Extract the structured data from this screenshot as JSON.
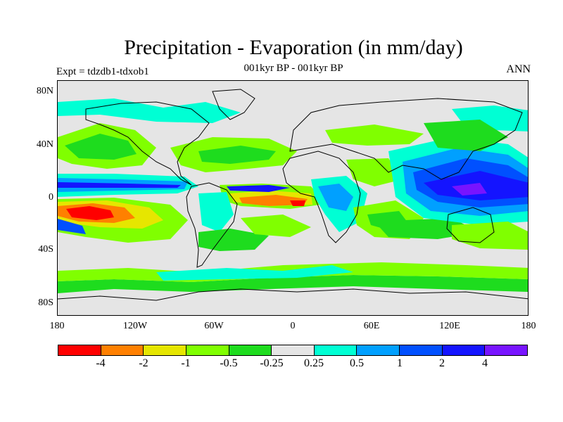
{
  "title": "Precipitation - Evaporation (in mm/day)",
  "subtitle": "001kyr BP - 001kyr BP",
  "experiment": "Expt = tdzdb1-tdxob1",
  "season": "ANN",
  "lat_labels": [
    "80N",
    "40N",
    "0",
    "40S",
    "80S"
  ],
  "lon_labels": [
    "180",
    "120W",
    "60W",
    "0",
    "60E",
    "120E",
    "180"
  ],
  "colorbar": {
    "colors": [
      "#ff0000",
      "#ff8000",
      "#e6e600",
      "#80ff00",
      "#1edc1e",
      "#e5e5e5",
      "#00ffd4",
      "#00a0ff",
      "#0050ff",
      "#1414ff",
      "#7814ff"
    ],
    "labels": [
      "-4",
      "-2",
      "-1",
      "-0.5",
      "-0.25",
      "0.25",
      "0.5",
      "1",
      "2",
      "4"
    ]
  },
  "legend_colors": {
    "red": "#ff0000",
    "orange": "#ff8000",
    "yellow": "#e6e600",
    "lime": "#80ff00",
    "green": "#1edc1e",
    "gray": "#e5e5e5",
    "cyan": "#00ffd4",
    "sky": "#00a0ff",
    "blue": "#0050ff",
    "deepblue": "#1414ff",
    "purple": "#7814ff"
  }
}
